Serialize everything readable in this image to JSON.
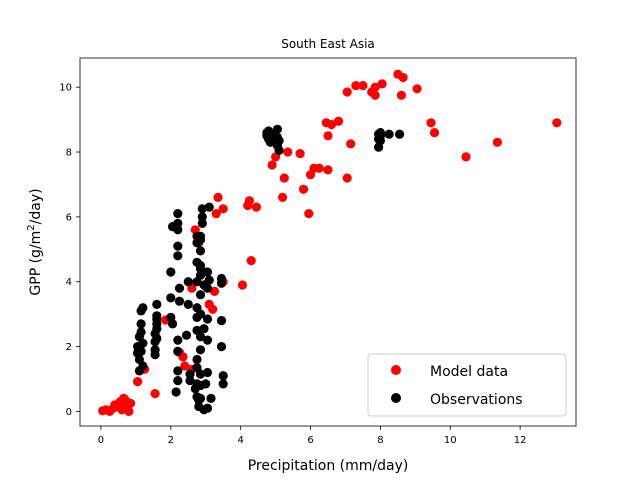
{
  "chart_data": {
    "type": "scatter",
    "title": "South East Asia",
    "xlabel": "Precipitation (mm/day)",
    "ylabel": "GPP (g/m²/day)",
    "ylabel_parts": {
      "base": "GPP (g/m",
      "sup": "2",
      "tail": "/day)"
    },
    "xlim": [
      -0.6,
      13.6
    ],
    "ylim": [
      -0.45,
      10.9
    ],
    "xticks": [
      0,
      2,
      4,
      6,
      8,
      10,
      12
    ],
    "xtick_labels": [
      "0",
      "2",
      "4",
      "6",
      "8",
      "10",
      "12"
    ],
    "yticks": [
      0,
      2,
      4,
      6,
      8,
      10
    ],
    "ytick_labels": [
      "0",
      "2",
      "4",
      "6",
      "8",
      "10"
    ],
    "grid": false,
    "legend_position": "bottom-right",
    "series": [
      {
        "name": "Model data",
        "color": "#ff0000",
        "points": [
          [
            0.05,
            0.02
          ],
          [
            0.15,
            0.05
          ],
          [
            0.25,
            0.0
          ],
          [
            0.35,
            0.1
          ],
          [
            0.4,
            0.2
          ],
          [
            0.5,
            0.15
          ],
          [
            0.55,
            0.3
          ],
          [
            0.6,
            0.05
          ],
          [
            0.65,
            0.4
          ],
          [
            0.7,
            0.35
          ],
          [
            0.75,
            0.25
          ],
          [
            0.8,
            0.0
          ],
          [
            0.85,
            0.25
          ],
          [
            1.05,
            0.92
          ],
          [
            1.25,
            1.3
          ],
          [
            1.55,
            0.55
          ],
          [
            1.85,
            2.82
          ],
          [
            2.25,
            1.82
          ],
          [
            2.35,
            1.68
          ],
          [
            2.4,
            1.4
          ],
          [
            2.6,
            3.8
          ],
          [
            2.6,
            1.3
          ],
          [
            2.7,
            5.6
          ],
          [
            2.8,
            5.2
          ],
          [
            3.1,
            3.3
          ],
          [
            3.2,
            3.15
          ],
          [
            3.25,
            3.7
          ],
          [
            3.3,
            6.1
          ],
          [
            3.35,
            6.6
          ],
          [
            3.5,
            6.25
          ],
          [
            3.5,
            4.0
          ],
          [
            4.05,
            3.9
          ],
          [
            4.2,
            6.35
          ],
          [
            4.25,
            6.5
          ],
          [
            4.3,
            4.65
          ],
          [
            4.45,
            6.3
          ],
          [
            4.9,
            7.6
          ],
          [
            5.0,
            7.85
          ],
          [
            5.2,
            6.6
          ],
          [
            5.25,
            7.2
          ],
          [
            5.35,
            8.0
          ],
          [
            5.7,
            7.95
          ],
          [
            5.8,
            6.85
          ],
          [
            5.95,
            6.1
          ],
          [
            6.0,
            7.3
          ],
          [
            6.1,
            7.5
          ],
          [
            6.25,
            7.5
          ],
          [
            6.45,
            8.9
          ],
          [
            6.5,
            8.5
          ],
          [
            6.5,
            7.45
          ],
          [
            6.6,
            8.85
          ],
          [
            6.8,
            8.95
          ],
          [
            7.05,
            7.2
          ],
          [
            7.05,
            9.85
          ],
          [
            7.15,
            8.25
          ],
          [
            7.3,
            10.05
          ],
          [
            7.5,
            10.05
          ],
          [
            7.75,
            9.85
          ],
          [
            7.85,
            10.0
          ],
          [
            7.85,
            9.75
          ],
          [
            8.05,
            10.1
          ],
          [
            8.5,
            10.4
          ],
          [
            8.6,
            9.75
          ],
          [
            8.65,
            10.3
          ],
          [
            9.05,
            9.95
          ],
          [
            9.45,
            8.9
          ],
          [
            9.55,
            8.6
          ],
          [
            10.45,
            7.85
          ],
          [
            11.35,
            8.3
          ],
          [
            13.05,
            8.9
          ]
        ]
      },
      {
        "name": "Observations",
        "color": "#000000",
        "points": [
          [
            1.05,
            1.8
          ],
          [
            1.05,
            2.0
          ],
          [
            1.1,
            1.6
          ],
          [
            1.1,
            2.3
          ],
          [
            1.15,
            2.45
          ],
          [
            1.15,
            2.7
          ],
          [
            1.15,
            3.1
          ],
          [
            1.2,
            3.2
          ],
          [
            1.2,
            1.4
          ],
          [
            1.2,
            2.1
          ],
          [
            1.15,
            1.85
          ],
          [
            1.1,
            1.25
          ],
          [
            1.55,
            1.9
          ],
          [
            1.55,
            2.15
          ],
          [
            1.55,
            2.4
          ],
          [
            1.6,
            2.55
          ],
          [
            1.6,
            2.7
          ],
          [
            1.6,
            2.85
          ],
          [
            1.6,
            2.95
          ],
          [
            1.6,
            3.3
          ],
          [
            1.55,
            1.75
          ],
          [
            1.6,
            2.25
          ],
          [
            2.0,
            4.3
          ],
          [
            2.0,
            3.5
          ],
          [
            2.05,
            5.7
          ],
          [
            2.0,
            2.9
          ],
          [
            2.05,
            2.7
          ],
          [
            2.2,
            6.1
          ],
          [
            2.2,
            5.8
          ],
          [
            2.2,
            5.6
          ],
          [
            2.2,
            5.1
          ],
          [
            2.2,
            4.8
          ],
          [
            2.25,
            3.8
          ],
          [
            2.25,
            3.4
          ],
          [
            2.2,
            2.2
          ],
          [
            2.2,
            1.85
          ],
          [
            2.2,
            1.25
          ],
          [
            2.2,
            0.95
          ],
          [
            2.15,
            0.6
          ],
          [
            2.55,
            1.15
          ],
          [
            2.55,
            0.95
          ],
          [
            2.5,
            4.0
          ],
          [
            2.5,
            3.3
          ],
          [
            2.45,
            2.35
          ],
          [
            2.75,
            5.4
          ],
          [
            2.75,
            5.2
          ],
          [
            2.75,
            4.6
          ],
          [
            2.75,
            4.0
          ],
          [
            2.75,
            3.2
          ],
          [
            2.75,
            2.9
          ],
          [
            2.75,
            2.5
          ],
          [
            2.75,
            1.6
          ],
          [
            2.75,
            1.35
          ],
          [
            2.75,
            0.85
          ],
          [
            2.7,
            0.7
          ],
          [
            2.75,
            0.45
          ],
          [
            2.8,
            0.15
          ],
          [
            2.8,
            0.35
          ],
          [
            2.85,
            5.4
          ],
          [
            2.85,
            5.3
          ],
          [
            2.85,
            4.95
          ],
          [
            2.85,
            4.5
          ],
          [
            2.85,
            4.4
          ],
          [
            2.85,
            4.2
          ],
          [
            2.85,
            3.6
          ],
          [
            2.85,
            3.0
          ],
          [
            2.85,
            2.3
          ],
          [
            2.85,
            1.9
          ],
          [
            2.85,
            1.15
          ],
          [
            2.85,
            0.8
          ],
          [
            2.85,
            0.4
          ],
          [
            2.9,
            6.25
          ],
          [
            2.9,
            6.0
          ],
          [
            2.9,
            5.8
          ],
          [
            2.95,
            3.9
          ],
          [
            2.95,
            2.55
          ],
          [
            2.95,
            0.05
          ],
          [
            3.0,
            0.85
          ],
          [
            3.05,
            0.1
          ],
          [
            3.05,
            1.2
          ],
          [
            3.05,
            4.3
          ],
          [
            3.05,
            3.8
          ],
          [
            3.05,
            2.85
          ],
          [
            3.05,
            2.2
          ],
          [
            3.1,
            6.3
          ],
          [
            3.1,
            4.05
          ],
          [
            3.15,
            0.4
          ],
          [
            3.45,
            4.1
          ],
          [
            3.45,
            3.95
          ],
          [
            3.45,
            2.8
          ],
          [
            3.45,
            2.0
          ],
          [
            3.5,
            1.1
          ],
          [
            3.5,
            0.85
          ],
          [
            4.75,
            8.6
          ],
          [
            4.75,
            8.5
          ],
          [
            4.8,
            8.65
          ],
          [
            4.8,
            8.4
          ],
          [
            4.85,
            8.55
          ],
          [
            4.85,
            8.3
          ],
          [
            4.9,
            8.55
          ],
          [
            5.05,
            8.7
          ],
          [
            5.05,
            8.45
          ],
          [
            5.05,
            8.2
          ],
          [
            5.1,
            8.35
          ],
          [
            5.1,
            8.05
          ],
          [
            7.95,
            8.15
          ],
          [
            7.95,
            8.4
          ],
          [
            7.95,
            8.55
          ],
          [
            8.0,
            8.6
          ],
          [
            8.0,
            8.35
          ],
          [
            8.0,
            8.5
          ],
          [
            8.25,
            8.55
          ],
          [
            8.55,
            8.55
          ]
        ]
      }
    ]
  }
}
